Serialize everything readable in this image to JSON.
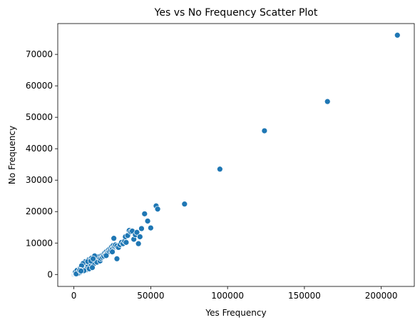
{
  "chart_data": {
    "type": "scatter",
    "title": "Yes vs No Frequency Scatter Plot",
    "xlabel": "Yes Frequency",
    "ylabel": "No Frequency",
    "xlim": [
      -10500,
      221500
    ],
    "ylim": [
      -3800,
      79800
    ],
    "xticks": [
      0,
      50000,
      100000,
      150000,
      200000
    ],
    "yticks": [
      0,
      10000,
      20000,
      30000,
      40000,
      50000,
      60000,
      70000
    ],
    "grid": false,
    "marker_color": "#1f77b4",
    "series": [
      {
        "points": [
          [
            0,
            0
          ],
          [
            300,
            150
          ],
          [
            600,
            250
          ],
          [
            900,
            380
          ],
          [
            1200,
            500
          ],
          [
            1500,
            450
          ],
          [
            1800,
            700
          ],
          [
            2100,
            650
          ],
          [
            2400,
            900
          ],
          [
            2700,
            1000
          ],
          [
            3000,
            1100
          ],
          [
            3200,
            800
          ],
          [
            3500,
            1300
          ],
          [
            3800,
            1200
          ],
          [
            4000,
            1500
          ],
          [
            4300,
            1400
          ],
          [
            4600,
            1700
          ],
          [
            4900,
            1600
          ],
          [
            5200,
            1900
          ],
          [
            5500,
            1800
          ],
          [
            5800,
            2100
          ],
          [
            6100,
            2000
          ],
          [
            6400,
            2300
          ],
          [
            6700,
            2200
          ],
          [
            7000,
            2500
          ],
          [
            7300,
            2400
          ],
          [
            7600,
            2700
          ],
          [
            7900,
            2600
          ],
          [
            8200,
            2900
          ],
          [
            8500,
            2800
          ],
          [
            8800,
            3100
          ],
          [
            9100,
            3000
          ],
          [
            9400,
            3300
          ],
          [
            9700,
            3200
          ],
          [
            10000,
            3500
          ],
          [
            10300,
            3400
          ],
          [
            10600,
            3700
          ],
          [
            10900,
            3600
          ],
          [
            11200,
            3900
          ],
          [
            11500,
            3800
          ],
          [
            11800,
            4100
          ],
          [
            12100,
            4000
          ],
          [
            12400,
            4300
          ],
          [
            12700,
            4200
          ],
          [
            13000,
            4500
          ],
          [
            13300,
            4400
          ],
          [
            13600,
            4700
          ],
          [
            13900,
            4600
          ],
          [
            14200,
            4900
          ],
          [
            14500,
            4800
          ],
          [
            14800,
            5100
          ],
          [
            15100,
            5000
          ],
          [
            15500,
            5300
          ],
          [
            16000,
            5200
          ],
          [
            1000,
            800
          ],
          [
            2000,
            1300
          ],
          [
            3000,
            700
          ],
          [
            4000,
            1900
          ],
          [
            5000,
            1200
          ],
          [
            6000,
            2600
          ],
          [
            7000,
            1900
          ],
          [
            8000,
            3300
          ],
          [
            9000,
            2400
          ],
          [
            10000,
            4200
          ],
          [
            11000,
            2900
          ],
          [
            12000,
            4800
          ],
          [
            13000,
            3400
          ],
          [
            14000,
            5200
          ],
          [
            15000,
            3900
          ],
          [
            16000,
            5600
          ],
          [
            17000,
            4300
          ],
          [
            8000,
            1500
          ],
          [
            10000,
            1800
          ],
          [
            12000,
            2200
          ],
          [
            7500,
            4100
          ],
          [
            9500,
            4600
          ],
          [
            11500,
            5200
          ],
          [
            13500,
            5900
          ],
          [
            6000,
            3500
          ],
          [
            5000,
            2800
          ],
          [
            4500,
            1000
          ],
          [
            3500,
            500
          ],
          [
            2500,
            300
          ],
          [
            1500,
            200
          ],
          [
            6500,
            1200
          ],
          [
            9000,
            4100
          ],
          [
            11000,
            4300
          ],
          [
            12500,
            5000
          ],
          [
            4000,
            1200
          ],
          [
            4200,
            1400
          ],
          [
            3700,
            1300
          ],
          [
            4600,
            1100
          ],
          [
            17500,
            5100
          ],
          [
            18000,
            6000
          ],
          [
            18500,
            5500
          ],
          [
            19000,
            6200
          ],
          [
            19500,
            5800
          ],
          [
            20000,
            6800
          ],
          [
            20500,
            6300
          ],
          [
            21000,
            7200
          ],
          [
            21500,
            6700
          ],
          [
            22000,
            7000
          ],
          [
            22500,
            7800
          ],
          [
            23000,
            7300
          ],
          [
            23500,
            8200
          ],
          [
            24000,
            7600
          ],
          [
            24500,
            8800
          ],
          [
            25000,
            8200
          ],
          [
            25500,
            9200
          ],
          [
            26000,
            8600
          ],
          [
            26500,
            9000
          ],
          [
            27000,
            9400
          ],
          [
            28000,
            9100
          ],
          [
            29000,
            8600
          ],
          [
            30000,
            9500
          ],
          [
            31000,
            10200
          ],
          [
            32000,
            9800
          ],
          [
            33000,
            10600
          ],
          [
            34000,
            10200
          ],
          [
            26000,
            11500
          ],
          [
            28000,
            5000
          ],
          [
            21000,
            6000
          ],
          [
            25000,
            7200
          ],
          [
            33500,
            12000
          ],
          [
            35000,
            12400
          ],
          [
            36000,
            14000
          ],
          [
            37000,
            13600
          ],
          [
            38000,
            13800
          ],
          [
            39000,
            11200
          ],
          [
            40000,
            12600
          ],
          [
            41000,
            13400
          ],
          [
            42000,
            9800
          ],
          [
            43000,
            12000
          ],
          [
            44000,
            14600
          ],
          [
            46000,
            19300
          ],
          [
            48000,
            17000
          ],
          [
            50000,
            14800
          ],
          [
            53500,
            21800
          ],
          [
            54500,
            20800
          ],
          [
            72000,
            22400
          ],
          [
            95000,
            33500
          ],
          [
            124000,
            45700
          ],
          [
            165000,
            55000
          ],
          [
            210500,
            76100
          ]
        ]
      }
    ]
  }
}
